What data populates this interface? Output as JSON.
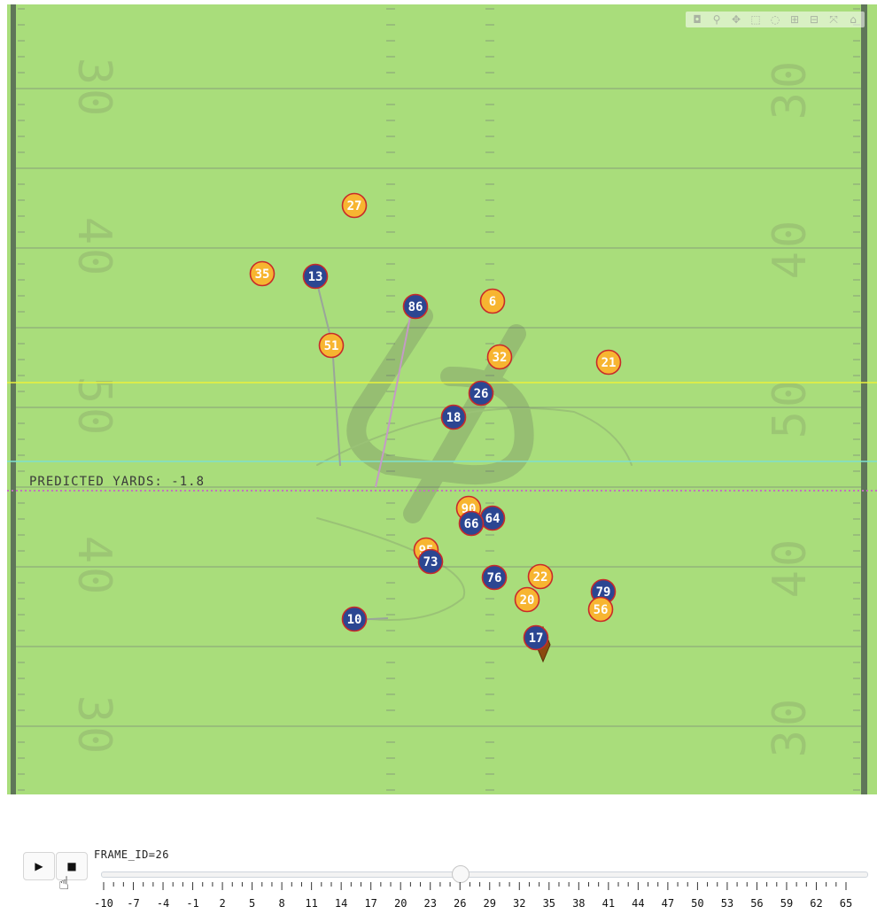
{
  "field": {
    "colors": {
      "turf": "#a9dd7b",
      "line": "#86a07a",
      "sideline": "#5f7659",
      "first_down": "#ecf23a",
      "line_of_scrimmage": "#7de0d0",
      "predicted": "#c46fc0",
      "offense_fill": "#2b4692",
      "defense_fill": "#f7b531",
      "marker_border": "#c82a2a",
      "ball": "#8b4a0f"
    },
    "yard_numbers": [
      {
        "text": "30",
        "side": "left"
      },
      {
        "text": "40",
        "side": "left"
      },
      {
        "text": "50",
        "side": "left"
      },
      {
        "text": "40",
        "side": "left"
      },
      {
        "text": "30",
        "side": "left"
      },
      {
        "text": "30",
        "side": "right"
      },
      {
        "text": "40",
        "side": "right"
      },
      {
        "text": "50",
        "side": "right"
      },
      {
        "text": "40",
        "side": "right"
      },
      {
        "text": "30",
        "side": "right"
      }
    ],
    "predicted_label": "PREDICTED YARDS: -1.8"
  },
  "players": [
    {
      "number": "27",
      "team": "defense"
    },
    {
      "number": "35",
      "team": "defense"
    },
    {
      "number": "13",
      "team": "offense"
    },
    {
      "number": "86",
      "team": "offense"
    },
    {
      "number": "6",
      "team": "defense"
    },
    {
      "number": "51",
      "team": "defense"
    },
    {
      "number": "32",
      "team": "defense"
    },
    {
      "number": "21",
      "team": "defense"
    },
    {
      "number": "26",
      "team": "offense"
    },
    {
      "number": "18",
      "team": "offense"
    },
    {
      "number": "90",
      "team": "defense"
    },
    {
      "number": "64",
      "team": "offense"
    },
    {
      "number": "66",
      "team": "offense"
    },
    {
      "number": "95",
      "team": "defense"
    },
    {
      "number": "73",
      "team": "offense"
    },
    {
      "number": "76",
      "team": "offense"
    },
    {
      "number": "22",
      "team": "defense"
    },
    {
      "number": "79",
      "team": "offense"
    },
    {
      "number": "20",
      "team": "defense"
    },
    {
      "number": "56",
      "team": "defense"
    },
    {
      "number": "10",
      "team": "offense"
    },
    {
      "number": "17",
      "team": "offense"
    }
  ],
  "modebar": {
    "icons": [
      "camera-icon",
      "zoom-icon",
      "pan-icon",
      "box-select-icon",
      "lasso-icon",
      "zoom-in-icon",
      "zoom-out-icon",
      "autoscale-icon",
      "reset-axes-icon"
    ],
    "glyphs": [
      "◘",
      "⚲",
      "✥",
      "⬚",
      "◌",
      "⊞",
      "⊟",
      "⤧",
      "⌂"
    ]
  },
  "controls": {
    "play_symbol": "▶",
    "stop_symbol": "■",
    "frame_label": "FRAME_ID=26",
    "frame_value": 26,
    "ticks": [
      "-10",
      "-7",
      "-4",
      "-1",
      "2",
      "5",
      "8",
      "11",
      "14",
      "17",
      "20",
      "23",
      "26",
      "29",
      "32",
      "35",
      "38",
      "41",
      "44",
      "47",
      "50",
      "53",
      "56",
      "59",
      "62",
      "65"
    ]
  }
}
